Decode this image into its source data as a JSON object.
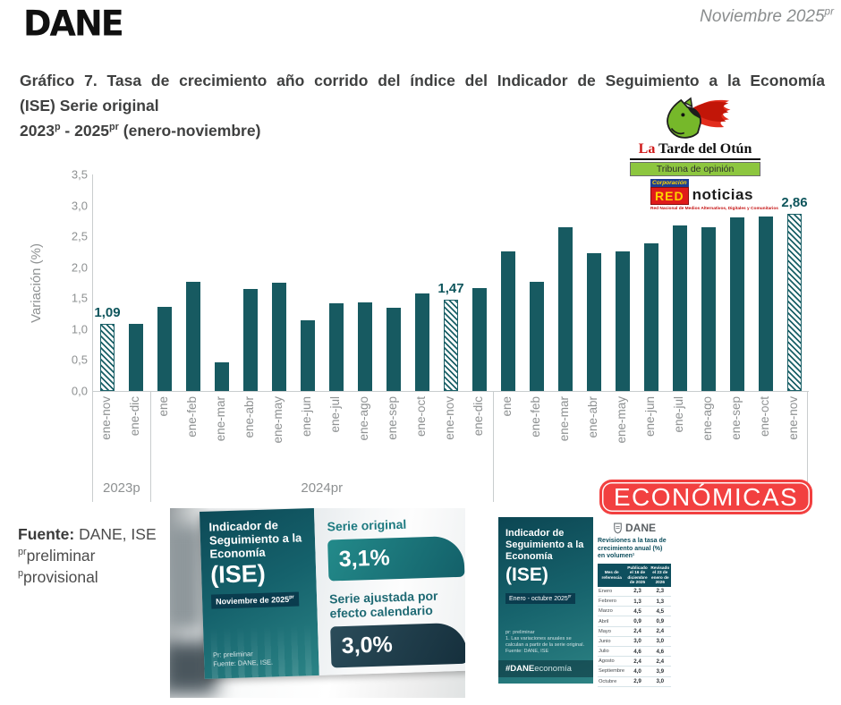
{
  "header": {
    "logo": "DANE",
    "date_text": "Noviembre 2025",
    "date_sup": "pr"
  },
  "title": {
    "line1": "Gráfico 7. Tasa de crecimiento año corrido del índice del Indicador de Seguimiento a la Economía",
    "line2": "(ISE) Serie original",
    "line3_a": "2023",
    "line3_a_sup": "p",
    "line3_b": " - 2025",
    "line3_b_sup": "pr",
    "line3_c": " (enero-noviembre)"
  },
  "logos": {
    "tarde": {
      "la": "La",
      "rest": " Tarde del Otún",
      "tagline": "Tribuna de opinión"
    },
    "red": {
      "corp": "Corporación",
      "main": "RED",
      "suffix": "noticias",
      "subtitle": "Red Nacional de Medios Alternativos, Digitales y Comunitarios"
    }
  },
  "badge": {
    "label": "ECONÓMICAS",
    "color": "#f24040"
  },
  "chart_data": {
    "type": "bar",
    "title": "Tasa de crecimiento año corrido del índice del ISE, Serie original, 2023p - 2025pr (enero-noviembre)",
    "xlabel": "",
    "ylabel": "Variación (%)",
    "ylim": [
      0,
      3.5
    ],
    "ytick_step": 0.5,
    "ytick_labels": [
      "0,0",
      "0,5",
      "1,0",
      "1,5",
      "2,0",
      "2,5",
      "3,0",
      "3,5"
    ],
    "categories": [
      "ene-nov",
      "ene-dic",
      "ene",
      "ene-feb",
      "ene-mar",
      "ene-abr",
      "ene-may",
      "ene-jun",
      "ene-jul",
      "ene-ago",
      "ene-sep",
      "ene-oct",
      "ene-nov",
      "ene-dic",
      "ene",
      "ene-feb",
      "ene-mar",
      "ene-abr",
      "ene-may",
      "ene-jun",
      "ene-jul",
      "ene-ago",
      "ene-sep",
      "ene-oct",
      "ene-nov"
    ],
    "values": [
      1.09,
      1.08,
      1.36,
      1.76,
      0.46,
      1.65,
      1.75,
      1.15,
      1.42,
      1.43,
      1.35,
      1.58,
      1.47,
      1.66,
      2.26,
      1.76,
      2.65,
      2.23,
      2.26,
      2.38,
      2.68,
      2.65,
      2.8,
      2.82,
      2.86
    ],
    "highlighted_indices": [
      0,
      12,
      24
    ],
    "annotations": [
      {
        "index": 0,
        "text": "1,09"
      },
      {
        "index": 12,
        "text": "1,47"
      },
      {
        "index": 24,
        "text": "2,86"
      }
    ],
    "groups": [
      {
        "label": "2023p",
        "span": 2
      },
      {
        "label": "2024pr",
        "span": 12
      },
      {
        "label": "",
        "span": 11
      }
    ],
    "bar_color": "#175a61",
    "grid": false,
    "legend": false
  },
  "source": {
    "label": "Fuente:",
    "value": " DANE, ISE",
    "note1_sup": "pr",
    "note1_text": "preliminar",
    "note2_sup": "p",
    "note2_text": "provisional"
  },
  "card_left": {
    "title": "Indicador de Seguimiento a la Economía",
    "acronym": "(ISE)",
    "badge_text": "Noviembre de 2025",
    "badge_sup": "pr",
    "note1": "Pr: preliminar",
    "note2": "Fuente: DANE, ISE.",
    "metric1_label": "Serie original",
    "metric1_value": "3,1%",
    "metric2_label": "Serie ajustada por efecto calendario",
    "metric2_value": "3,0%"
  },
  "card_right": {
    "title": "Indicador de Seguimiento a la Economía",
    "acronym": "(ISE)",
    "badge_text": "Enero - octubre 2025",
    "badge_sup": "pr",
    "footnote1": "pr: preliminar",
    "footnote2": "1. Las variaciones anuales se calculan a partir de la serie original.",
    "footnote3": "Fuente: DANE, ISE",
    "hash_bold": "#DANE",
    "hash_light": "economía",
    "dane_text": "DANE",
    "table_title": "Revisiones a la tasa de crecimiento anual (%) en volumen¹",
    "table": {
      "col_headers": [
        "Mes de referencia",
        "Publicado el 16 de diciembre de 2025",
        "Revisado el 23 de enero de 2026"
      ],
      "rows": [
        [
          "Enero",
          "2,3",
          "2,3"
        ],
        [
          "Febrero",
          "1,3",
          "1,3"
        ],
        [
          "Marzo",
          "4,5",
          "4,5"
        ],
        [
          "Abril",
          "0,9",
          "0,9"
        ],
        [
          "Mayo",
          "2,4",
          "2,4"
        ],
        [
          "Junio",
          "3,0",
          "3,0"
        ],
        [
          "Julio",
          "4,6",
          "4,6"
        ],
        [
          "Agosto",
          "2,4",
          "2,4"
        ],
        [
          "Septiembre",
          "4,0",
          "3,9"
        ],
        [
          "Octubre",
          "2,9",
          "3,0"
        ]
      ]
    }
  }
}
